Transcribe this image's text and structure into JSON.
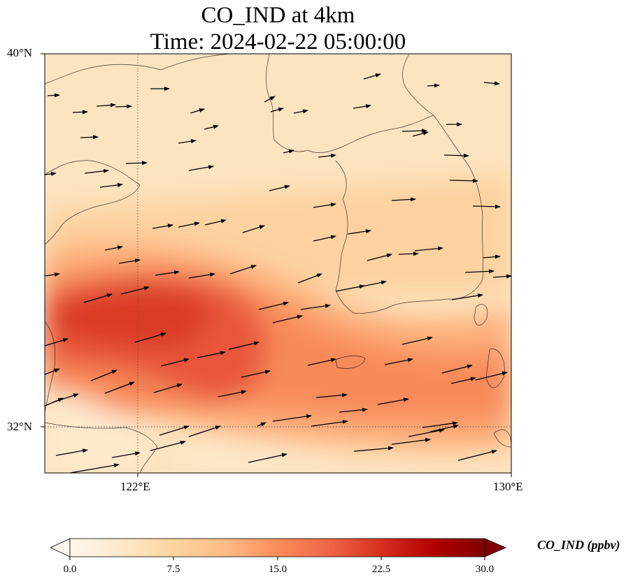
{
  "figure": {
    "title_line1": "CO_IND at 4km",
    "title_line2": "Time: 2024-02-22 05:00:00"
  },
  "map": {
    "lon_range": [
      120,
      130
    ],
    "lat_range": [
      31,
      40
    ],
    "lon_ticks": [
      {
        "value": 122,
        "label": "122°E"
      },
      {
        "value": 130,
        "label": "130°E"
      }
    ],
    "lat_ticks": [
      {
        "value": 40,
        "label": "40°N"
      },
      {
        "value": 32,
        "label": "32°N"
      }
    ],
    "gridlines": "dotted",
    "field_description": "CO_IND concentration shading with wind vectors; maximum band (~18-22 ppbv) runs from the west across the Yellow Sea toward Jeju and Kyushu"
  },
  "colorbar": {
    "label": "CO_IND (ppbv)",
    "min": 0.0,
    "max": 30.0,
    "extend": "both",
    "tick_labels": [
      "0.0",
      "7.5",
      "15.0",
      "22.5",
      "30.0"
    ],
    "colormap": "OrRd",
    "colors": [
      "#fff7ec",
      "#fee8c8",
      "#fdd49e",
      "#fdbb84",
      "#fc8d59",
      "#ef6548",
      "#d7301f",
      "#b30000",
      "#7f0000"
    ]
  }
}
